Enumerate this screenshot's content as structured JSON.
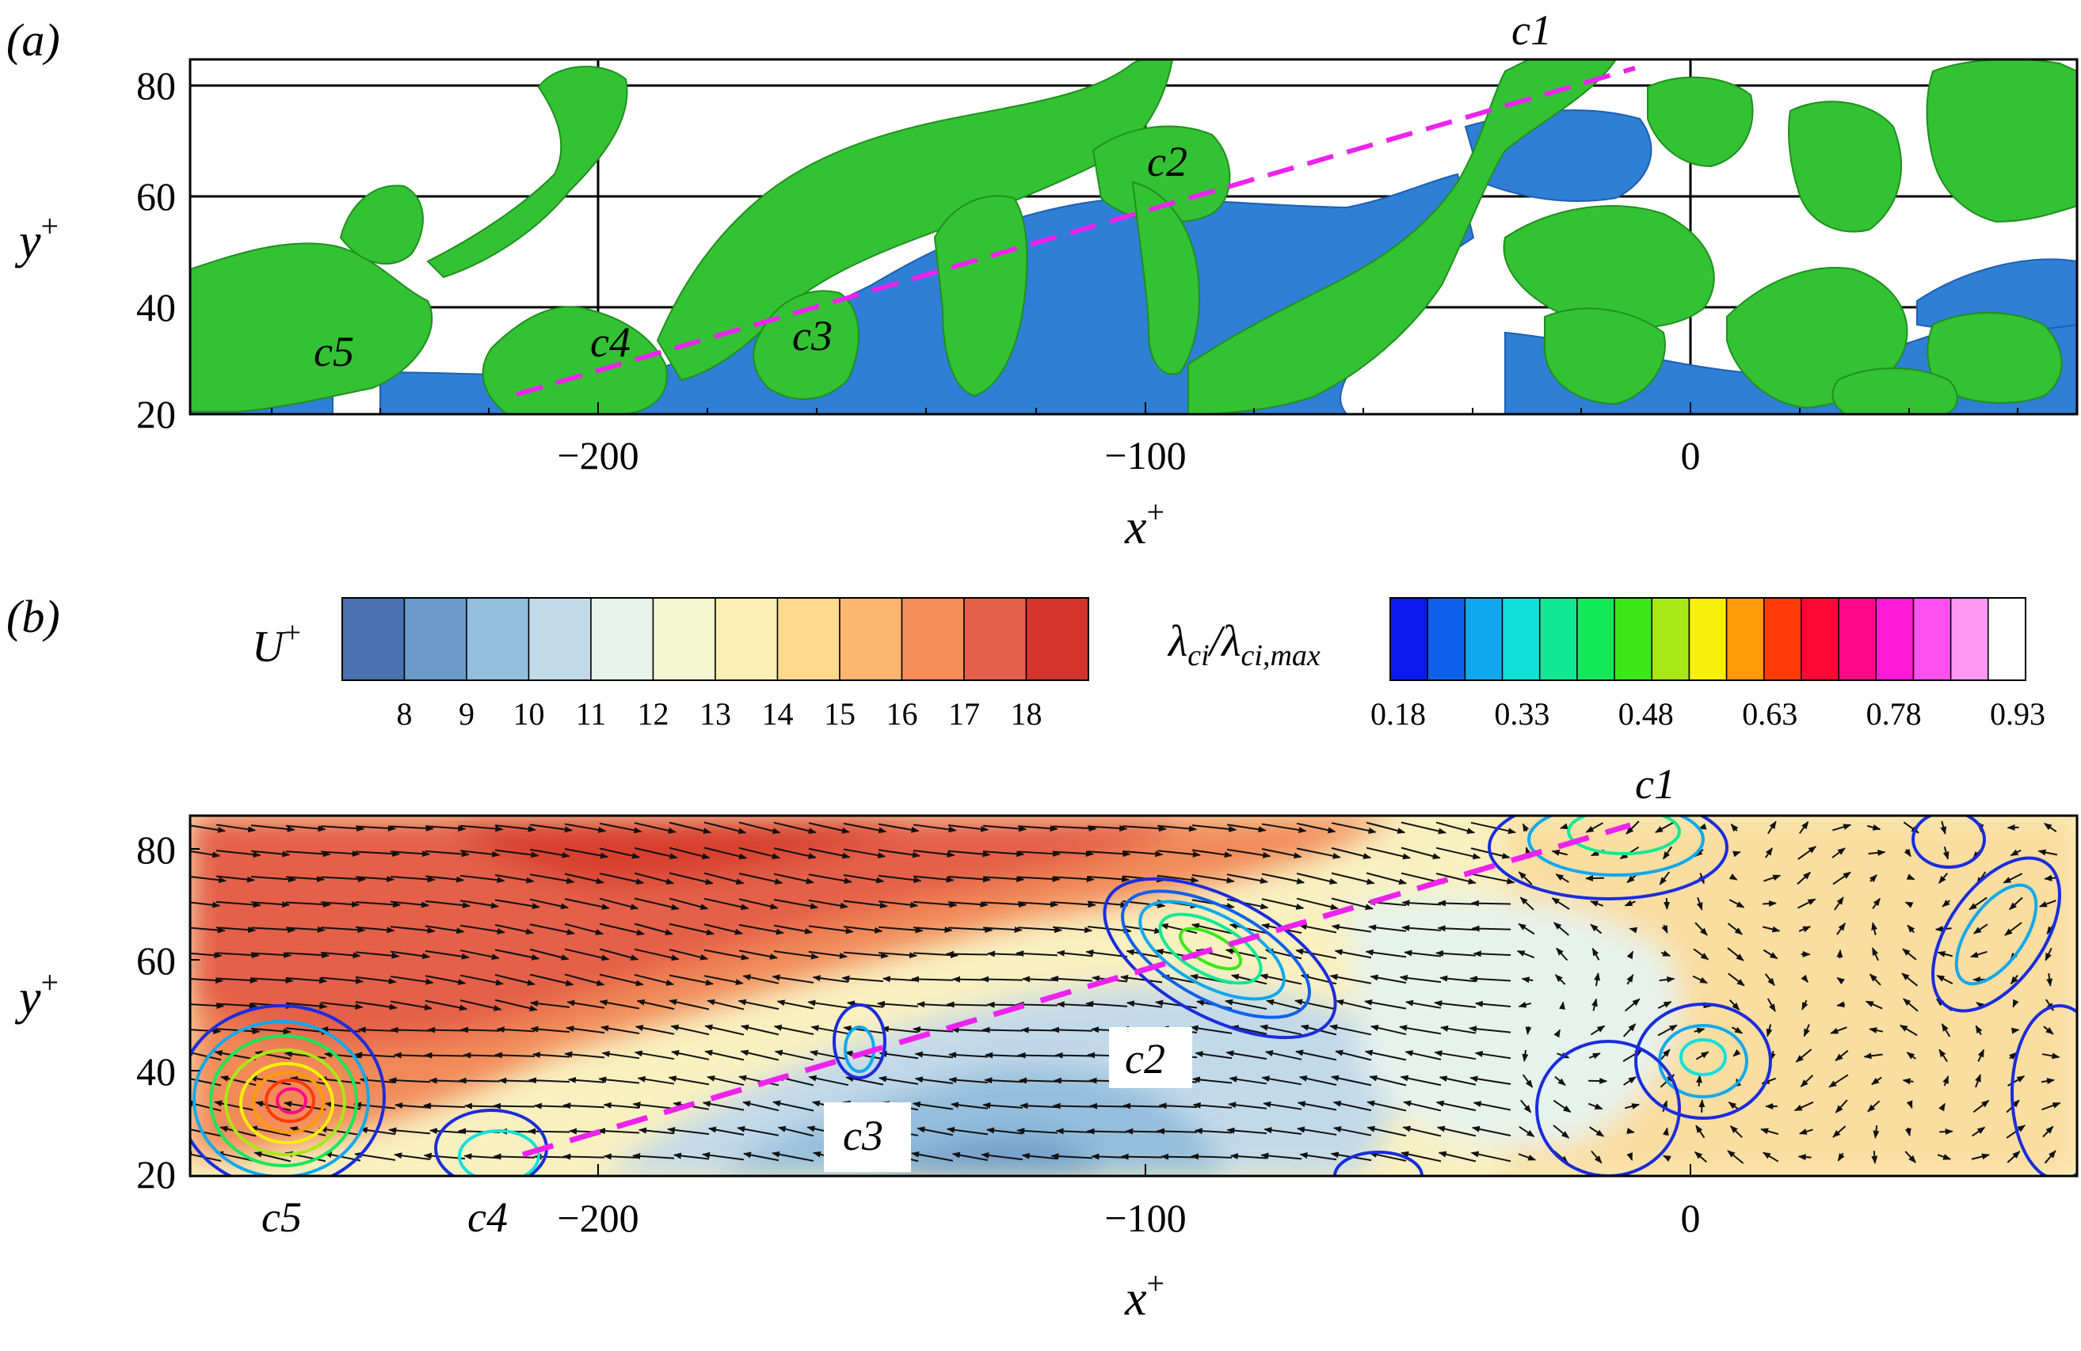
{
  "figure": {
    "panel_a": {
      "label": "(a)",
      "x_axis": {
        "label_main": "x",
        "label_sup": "+",
        "ticks": [
          "−200",
          "−100",
          "0"
        ],
        "range": [
          -275,
          70
        ]
      },
      "y_axis": {
        "label_main": "y",
        "label_sup": "+",
        "ticks": [
          "20",
          "40",
          "60",
          "80"
        ],
        "range": [
          20,
          85
        ]
      },
      "structures": [
        "c1",
        "c2",
        "c3",
        "c4",
        "c5"
      ],
      "colors": {
        "vortex_isosurface": "#33c233",
        "low_speed_isosurface": "#2f7fd6",
        "inclination_line": "#ee22ee",
        "grid": "#000000"
      }
    },
    "panel_b": {
      "label": "(b)",
      "x_axis": {
        "label_main": "x",
        "label_sup": "+",
        "ticks": [
          "−200",
          "−100",
          "0"
        ],
        "range": [
          -275,
          70
        ]
      },
      "y_axis": {
        "label_main": "y",
        "label_sup": "+",
        "ticks": [
          "20",
          "40",
          "60",
          "80"
        ],
        "range": [
          20,
          85
        ]
      },
      "structures": [
        "c1",
        "c2",
        "c3",
        "c4",
        "c5"
      ],
      "colorbar_u": {
        "title_main": "U",
        "title_sup": "+",
        "ticks": [
          "8",
          "9",
          "10",
          "11",
          "12",
          "13",
          "14",
          "15",
          "16",
          "17",
          "18"
        ],
        "colors": [
          "#4a72b0",
          "#6b9acb",
          "#93bedc",
          "#c2d9ea",
          "#e6f2ec",
          "#f3f7cf",
          "#fcefb3",
          "#fdda90",
          "#fbb56f",
          "#f68d58",
          "#e4604a",
          "#d4352c"
        ]
      },
      "colorbar_lambda": {
        "title_num": "λ",
        "title_num_sub": "ci",
        "title_den": "λ",
        "title_den_sub": "ci,max",
        "ticks": [
          "0.18",
          "0.33",
          "0.48",
          "0.63",
          "0.78",
          "0.93"
        ],
        "colors": [
          "#0a1aee",
          "#0f60ee",
          "#0fa8ee",
          "#10e0d8",
          "#10e894",
          "#12e85a",
          "#3ae818",
          "#a8e818",
          "#f8f008",
          "#ff9a08",
          "#ff3a08",
          "#ff0838",
          "#ff0888",
          "#ff18d8",
          "#ff50f0",
          "#ff98f4",
          "#ffffff"
        ]
      },
      "colors": {
        "inclination_line": "#ee22ee",
        "vectors": "#111111"
      }
    }
  }
}
